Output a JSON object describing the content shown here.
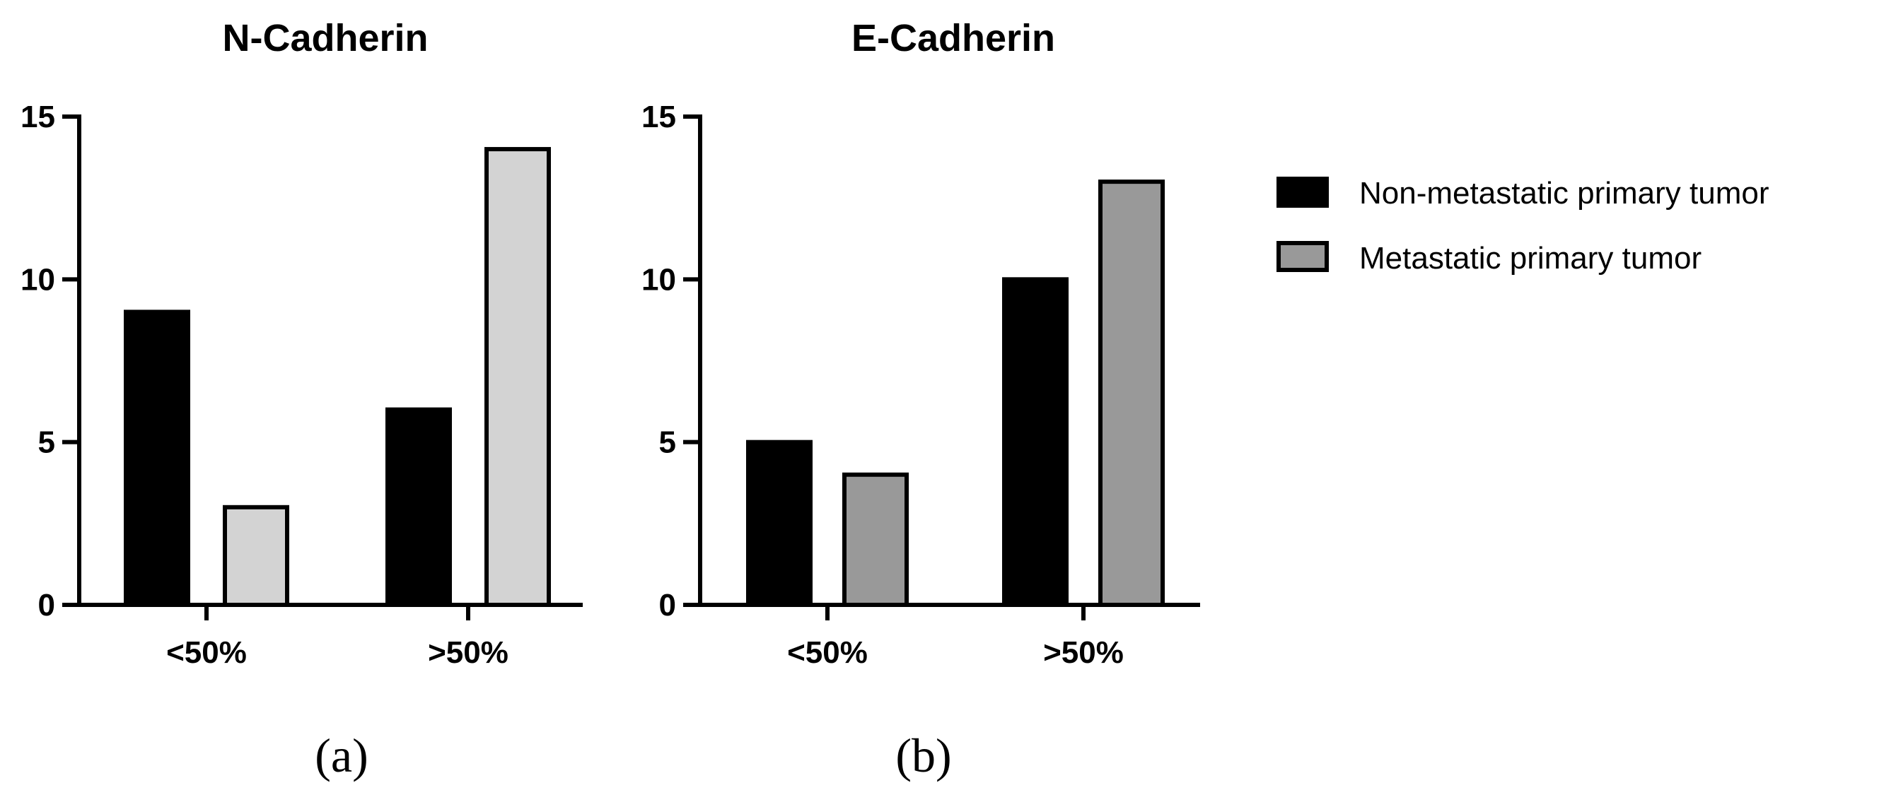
{
  "colors": {
    "series_fill": [
      "#000000",
      "#d3d3d3"
    ],
    "series_fill_b": [
      "#000000",
      "#999999"
    ],
    "stroke": "#000000"
  },
  "legend": {
    "items": [
      "Non-metastatic primary tumor",
      "Metastatic primary tumor"
    ]
  },
  "chart_data": [
    {
      "type": "bar",
      "title": "N-Cadherin",
      "panel_label": "(a)",
      "categories": [
        "<50%",
        ">50%"
      ],
      "series": [
        {
          "name": "Non-metastatic primary tumor",
          "values": [
            9,
            6
          ]
        },
        {
          "name": "Metastatic primary tumor",
          "values": [
            3,
            14
          ]
        }
      ],
      "ylim": [
        0,
        15
      ],
      "yticks": [
        "0",
        "5",
        "10",
        "15"
      ],
      "xlabel": "",
      "ylabel": ""
    },
    {
      "type": "bar",
      "title": "E-Cadherin",
      "panel_label": "(b)",
      "categories": [
        "<50%",
        ">50%"
      ],
      "series": [
        {
          "name": "Non-metastatic primary tumor",
          "values": [
            5,
            10
          ]
        },
        {
          "name": "Metastatic primary tumor",
          "values": [
            4,
            13
          ]
        }
      ],
      "ylim": [
        0,
        15
      ],
      "yticks": [
        "0",
        "5",
        "10",
        "15"
      ],
      "xlabel": "",
      "ylabel": ""
    }
  ]
}
